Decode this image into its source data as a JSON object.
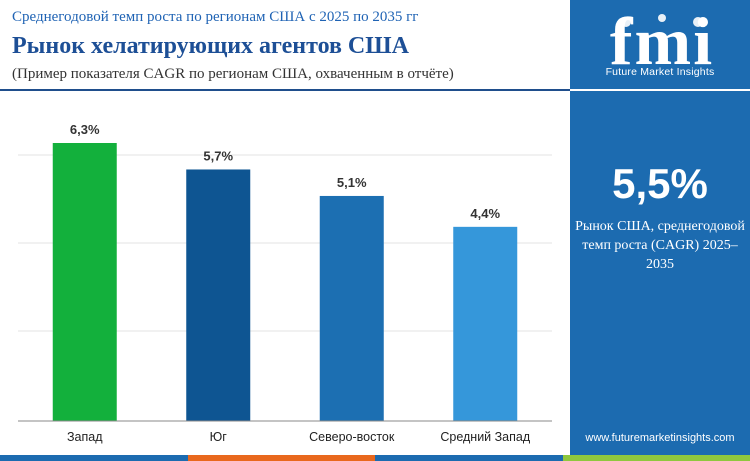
{
  "header": {
    "kicker": "Среднегодовой темп роста по регионам США с 2025 по 2035 гг",
    "title": "Рынок хелатирующих агентов США",
    "subtitle": "(Пример показателя CAGR по регионам США, охваченным в отчёте)"
  },
  "chart_data": {
    "type": "bar",
    "categories": [
      "Запад",
      "Юг",
      "Северо-восток",
      "Средний Запад"
    ],
    "values": [
      6.3,
      5.7,
      5.1,
      4.4
    ],
    "value_labels": [
      "6,3%",
      "5,7%",
      "5,1%",
      "4,4%"
    ],
    "bar_colors": [
      "#13b03c",
      "#0e5592",
      "#1c6fb2",
      "#3597da"
    ],
    "ylim": [
      0,
      6.3
    ],
    "grid": true
  },
  "side_panel": {
    "logo_text": "fmi",
    "logo_subtitle": "Future Market Insights",
    "value": "5,5%",
    "caption": "Рынок США, среднегодовой темп роста (CAGR) 2025–2035",
    "url": "www.futuremarketinsights.com"
  },
  "colors": {
    "panel_bg": "#1c6bb0",
    "title": "#1d4f96",
    "footer_strip": [
      "#1c6bb0",
      "#e9681d",
      "#1c6bb0",
      "#8fc73e"
    ]
  }
}
